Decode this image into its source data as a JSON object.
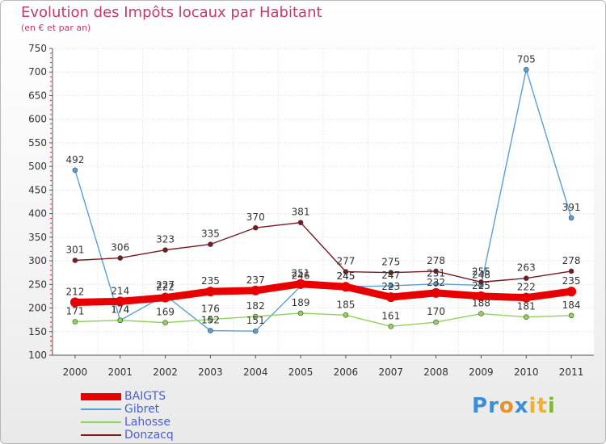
{
  "title": "Evolution des Impôts locaux par Habitant",
  "subtitle": "(en € et par an)",
  "brand": {
    "text": "Proxiti",
    "letters": [
      "P",
      "r",
      "o",
      "x",
      "i",
      "t",
      "i"
    ],
    "letter_colors": [
      "#3d8ed8",
      "#3d8ed8",
      "#e8912a",
      "#3d8ed8",
      "#f2b12a",
      "#f2b12a",
      "#7dbb2e"
    ]
  },
  "chart_data": {
    "type": "line",
    "title": "Evolution des Impôts locaux par Habitant",
    "ylabel": "(en € et par an)",
    "xlabel": "",
    "categories": [
      "2000",
      "2001",
      "2002",
      "2003",
      "2004",
      "2005",
      "2006",
      "2007",
      "2008",
      "2009",
      "2010",
      "2011"
    ],
    "ylim": [
      100,
      750
    ],
    "yticks": [
      100,
      150,
      200,
      250,
      300,
      350,
      400,
      450,
      500,
      550,
      600,
      650,
      700,
      750
    ],
    "grid": true,
    "legend_position": "bottom-left",
    "series": [
      {
        "name": "BAIGTS",
        "color": "#e80000",
        "emphasis": true,
        "values": [
          212,
          214,
          222,
          235,
          237,
          251,
          245,
          223,
          232,
          225,
          222,
          235
        ],
        "labels": [
          "212",
          "214",
          "222",
          "235",
          "237",
          "251",
          "245",
          "223",
          "232",
          "225",
          "222",
          "235"
        ]
      },
      {
        "name": "Gibret",
        "color": "#5b9fd8",
        "emphasis": false,
        "values": [
          492,
          174,
          227,
          152,
          151,
          246,
          245,
          247,
          251,
          248,
          705,
          391
        ],
        "labels": [
          "492",
          "174",
          "227",
          "152",
          "151",
          "246",
          "245",
          "247",
          "251",
          "248",
          "705",
          "391"
        ]
      },
      {
        "name": "Lahosse",
        "color": "#8fd35a",
        "emphasis": false,
        "values": [
          171,
          174,
          169,
          176,
          182,
          189,
          185,
          161,
          170,
          188,
          181,
          184
        ],
        "labels": [
          "171",
          "174",
          "169",
          "176",
          "182",
          "189",
          "185",
          "161",
          "170",
          "188",
          "181",
          "184"
        ]
      },
      {
        "name": "Donzacq",
        "color": "#7a1a1e",
        "emphasis": false,
        "values": [
          301,
          306,
          323,
          335,
          370,
          381,
          277,
          275,
          278,
          255,
          263,
          278
        ],
        "labels": [
          "301",
          "306",
          "323",
          "335",
          "370",
          "381",
          "277",
          "275",
          "278",
          "255",
          "263",
          "278"
        ]
      }
    ]
  }
}
